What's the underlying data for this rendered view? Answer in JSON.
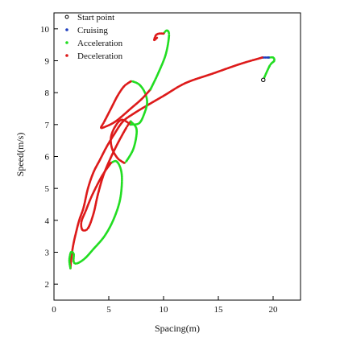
{
  "chart_data": {
    "type": "scatter",
    "xlabel": "Spacing(m)",
    "ylabel": "Speed(m/s)",
    "xlim": [
      0,
      22.5
    ],
    "ylim": [
      1.5,
      10.5
    ],
    "x_ticks": [
      0,
      5,
      10,
      15,
      20
    ],
    "y_ticks": [
      2,
      3,
      4,
      5,
      6,
      7,
      8,
      9,
      10
    ],
    "legend_position": "top-left",
    "start_point": [
      19.1,
      8.4
    ],
    "series": [
      {
        "name": "Start point",
        "color": "#000000",
        "marker": "open-circle"
      },
      {
        "name": "Cruising",
        "color": "#1f3fbf",
        "marker": "dot"
      },
      {
        "name": "Acceleration",
        "color": "#22dd22",
        "marker": "dot"
      },
      {
        "name": "Deceleration",
        "color": "#dd1a1a",
        "marker": "dot"
      }
    ],
    "trajectory": [
      {
        "mode": "Acceleration",
        "points": [
          [
            19.1,
            8.4
          ],
          [
            19.7,
            8.85
          ],
          [
            20.1,
            9.0
          ],
          [
            20.0,
            9.1
          ],
          [
            19.6,
            9.1
          ]
        ]
      },
      {
        "mode": "Cruising",
        "points": [
          [
            19.6,
            9.1
          ],
          [
            19.0,
            9.1
          ]
        ]
      },
      {
        "mode": "Deceleration",
        "points": [
          [
            19.0,
            9.1
          ],
          [
            17.0,
            8.9
          ],
          [
            14.5,
            8.6
          ],
          [
            12.0,
            8.3
          ],
          [
            10.0,
            7.9
          ],
          [
            8.5,
            7.6
          ],
          [
            7.3,
            7.35
          ],
          [
            6.3,
            7.1
          ],
          [
            5.5,
            6.7
          ],
          [
            4.8,
            6.3
          ],
          [
            4.2,
            5.9
          ],
          [
            3.6,
            5.5
          ],
          [
            3.1,
            5.0
          ],
          [
            2.7,
            4.4
          ],
          [
            2.3,
            4.0
          ],
          [
            2.0,
            3.6
          ],
          [
            1.8,
            3.3
          ],
          [
            1.65,
            3.0
          ],
          [
            1.55,
            2.7
          ],
          [
            1.5,
            2.5
          ]
        ]
      },
      {
        "mode": "Acceleration",
        "points": [
          [
            1.5,
            2.5
          ],
          [
            1.4,
            2.75
          ],
          [
            1.55,
            3.0
          ],
          [
            1.8,
            2.95
          ],
          [
            1.8,
            2.7
          ],
          [
            2.1,
            2.65
          ],
          [
            2.8,
            2.8
          ],
          [
            3.6,
            3.1
          ],
          [
            4.6,
            3.5
          ],
          [
            5.4,
            4.0
          ],
          [
            6.0,
            4.6
          ],
          [
            6.2,
            5.2
          ],
          [
            6.1,
            5.6
          ],
          [
            5.7,
            5.85
          ],
          [
            5.2,
            5.8
          ]
        ]
      },
      {
        "mode": "Deceleration",
        "points": [
          [
            5.2,
            5.8
          ],
          [
            4.4,
            5.4
          ],
          [
            3.5,
            4.8
          ],
          [
            2.9,
            4.3
          ],
          [
            2.5,
            3.95
          ],
          [
            2.6,
            3.7
          ],
          [
            3.1,
            3.75
          ],
          [
            3.6,
            4.2
          ],
          [
            4.0,
            4.8
          ],
          [
            4.5,
            5.4
          ],
          [
            5.1,
            5.9
          ],
          [
            5.8,
            6.4
          ],
          [
            6.6,
            6.9
          ],
          [
            7.0,
            7.1
          ]
        ]
      },
      {
        "mode": "Acceleration",
        "points": [
          [
            7.0,
            7.1
          ],
          [
            7.5,
            6.9
          ],
          [
            7.5,
            6.6
          ],
          [
            7.2,
            6.2
          ],
          [
            6.6,
            5.85
          ],
          [
            6.4,
            5.8
          ]
        ]
      },
      {
        "mode": "Deceleration",
        "points": [
          [
            6.4,
            5.8
          ],
          [
            5.8,
            5.95
          ],
          [
            5.3,
            6.25
          ],
          [
            5.2,
            6.6
          ],
          [
            5.6,
            6.95
          ],
          [
            6.2,
            7.15
          ],
          [
            7.0,
            7.0
          ]
        ]
      },
      {
        "mode": "Acceleration",
        "points": [
          [
            7.0,
            7.0
          ],
          [
            7.8,
            7.05
          ],
          [
            8.3,
            7.4
          ],
          [
            8.5,
            7.7
          ],
          [
            8.3,
            8.0
          ],
          [
            7.8,
            8.25
          ],
          [
            7.2,
            8.35
          ],
          [
            7.0,
            8.35
          ]
        ]
      },
      {
        "mode": "Deceleration",
        "points": [
          [
            7.0,
            8.35
          ],
          [
            6.4,
            8.2
          ],
          [
            5.8,
            7.9
          ],
          [
            5.2,
            7.5
          ],
          [
            4.6,
            7.1
          ],
          [
            4.3,
            6.9
          ],
          [
            4.8,
            6.95
          ],
          [
            5.4,
            7.05
          ],
          [
            6.0,
            7.2
          ],
          [
            7.0,
            7.5
          ],
          [
            8.0,
            7.8
          ],
          [
            8.8,
            8.1
          ]
        ]
      },
      {
        "mode": "Acceleration",
        "points": [
          [
            8.8,
            8.1
          ],
          [
            9.5,
            8.6
          ],
          [
            10.2,
            9.2
          ],
          [
            10.5,
            9.8
          ],
          [
            10.3,
            9.95
          ],
          [
            10.0,
            9.85
          ]
        ]
      },
      {
        "mode": "Deceleration",
        "points": [
          [
            10.0,
            9.85
          ],
          [
            9.6,
            9.85
          ],
          [
            9.3,
            9.8
          ],
          [
            9.15,
            9.65
          ],
          [
            9.4,
            9.72
          ]
        ]
      }
    ]
  }
}
